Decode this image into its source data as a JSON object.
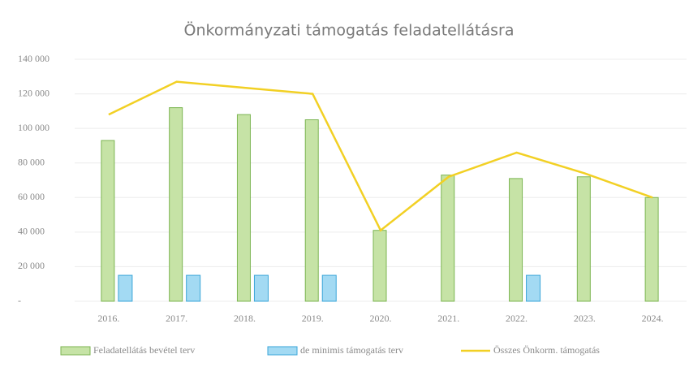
{
  "chart_data": {
    "type": "bar",
    "title": "Önkormányzati támogatás feladatellátásra",
    "categories": [
      "2016.",
      "2017.",
      "2018.",
      "2019.",
      "2020.",
      "2021.",
      "2022.",
      "2023.",
      "2024."
    ],
    "series": [
      {
        "name": "Feladatellátás bevétel terv",
        "type": "bar",
        "color": "#c6e3a6",
        "stroke": "#7cb552",
        "values": [
          93000,
          112000,
          108000,
          105000,
          41000,
          73000,
          71000,
          72000,
          60000
        ]
      },
      {
        "name": "de minimis támogatás terv",
        "type": "bar",
        "color": "#a3daf3",
        "stroke": "#3aa6d8",
        "values": [
          15000,
          15000,
          15000,
          15000,
          null,
          null,
          15000,
          null,
          null
        ]
      },
      {
        "name": "Összes Önkorm. támogatás",
        "type": "line",
        "color": "#f2d024",
        "values": [
          108000,
          127000,
          123500,
          120000,
          41000,
          72000,
          86000,
          74000,
          60000
        ]
      }
    ],
    "ylim": [
      0,
      140000
    ],
    "yticks": [
      {
        "value": 0,
        "label": "-"
      },
      {
        "value": 20000,
        "label": "20 000"
      },
      {
        "value": 40000,
        "label": "40 000"
      },
      {
        "value": 60000,
        "label": "60 000"
      },
      {
        "value": 80000,
        "label": "80 000"
      },
      {
        "value": 100000,
        "label": "100 000"
      },
      {
        "value": 120000,
        "label": "120 000"
      },
      {
        "value": 140000,
        "label": "140 000"
      }
    ],
    "grid": true
  }
}
